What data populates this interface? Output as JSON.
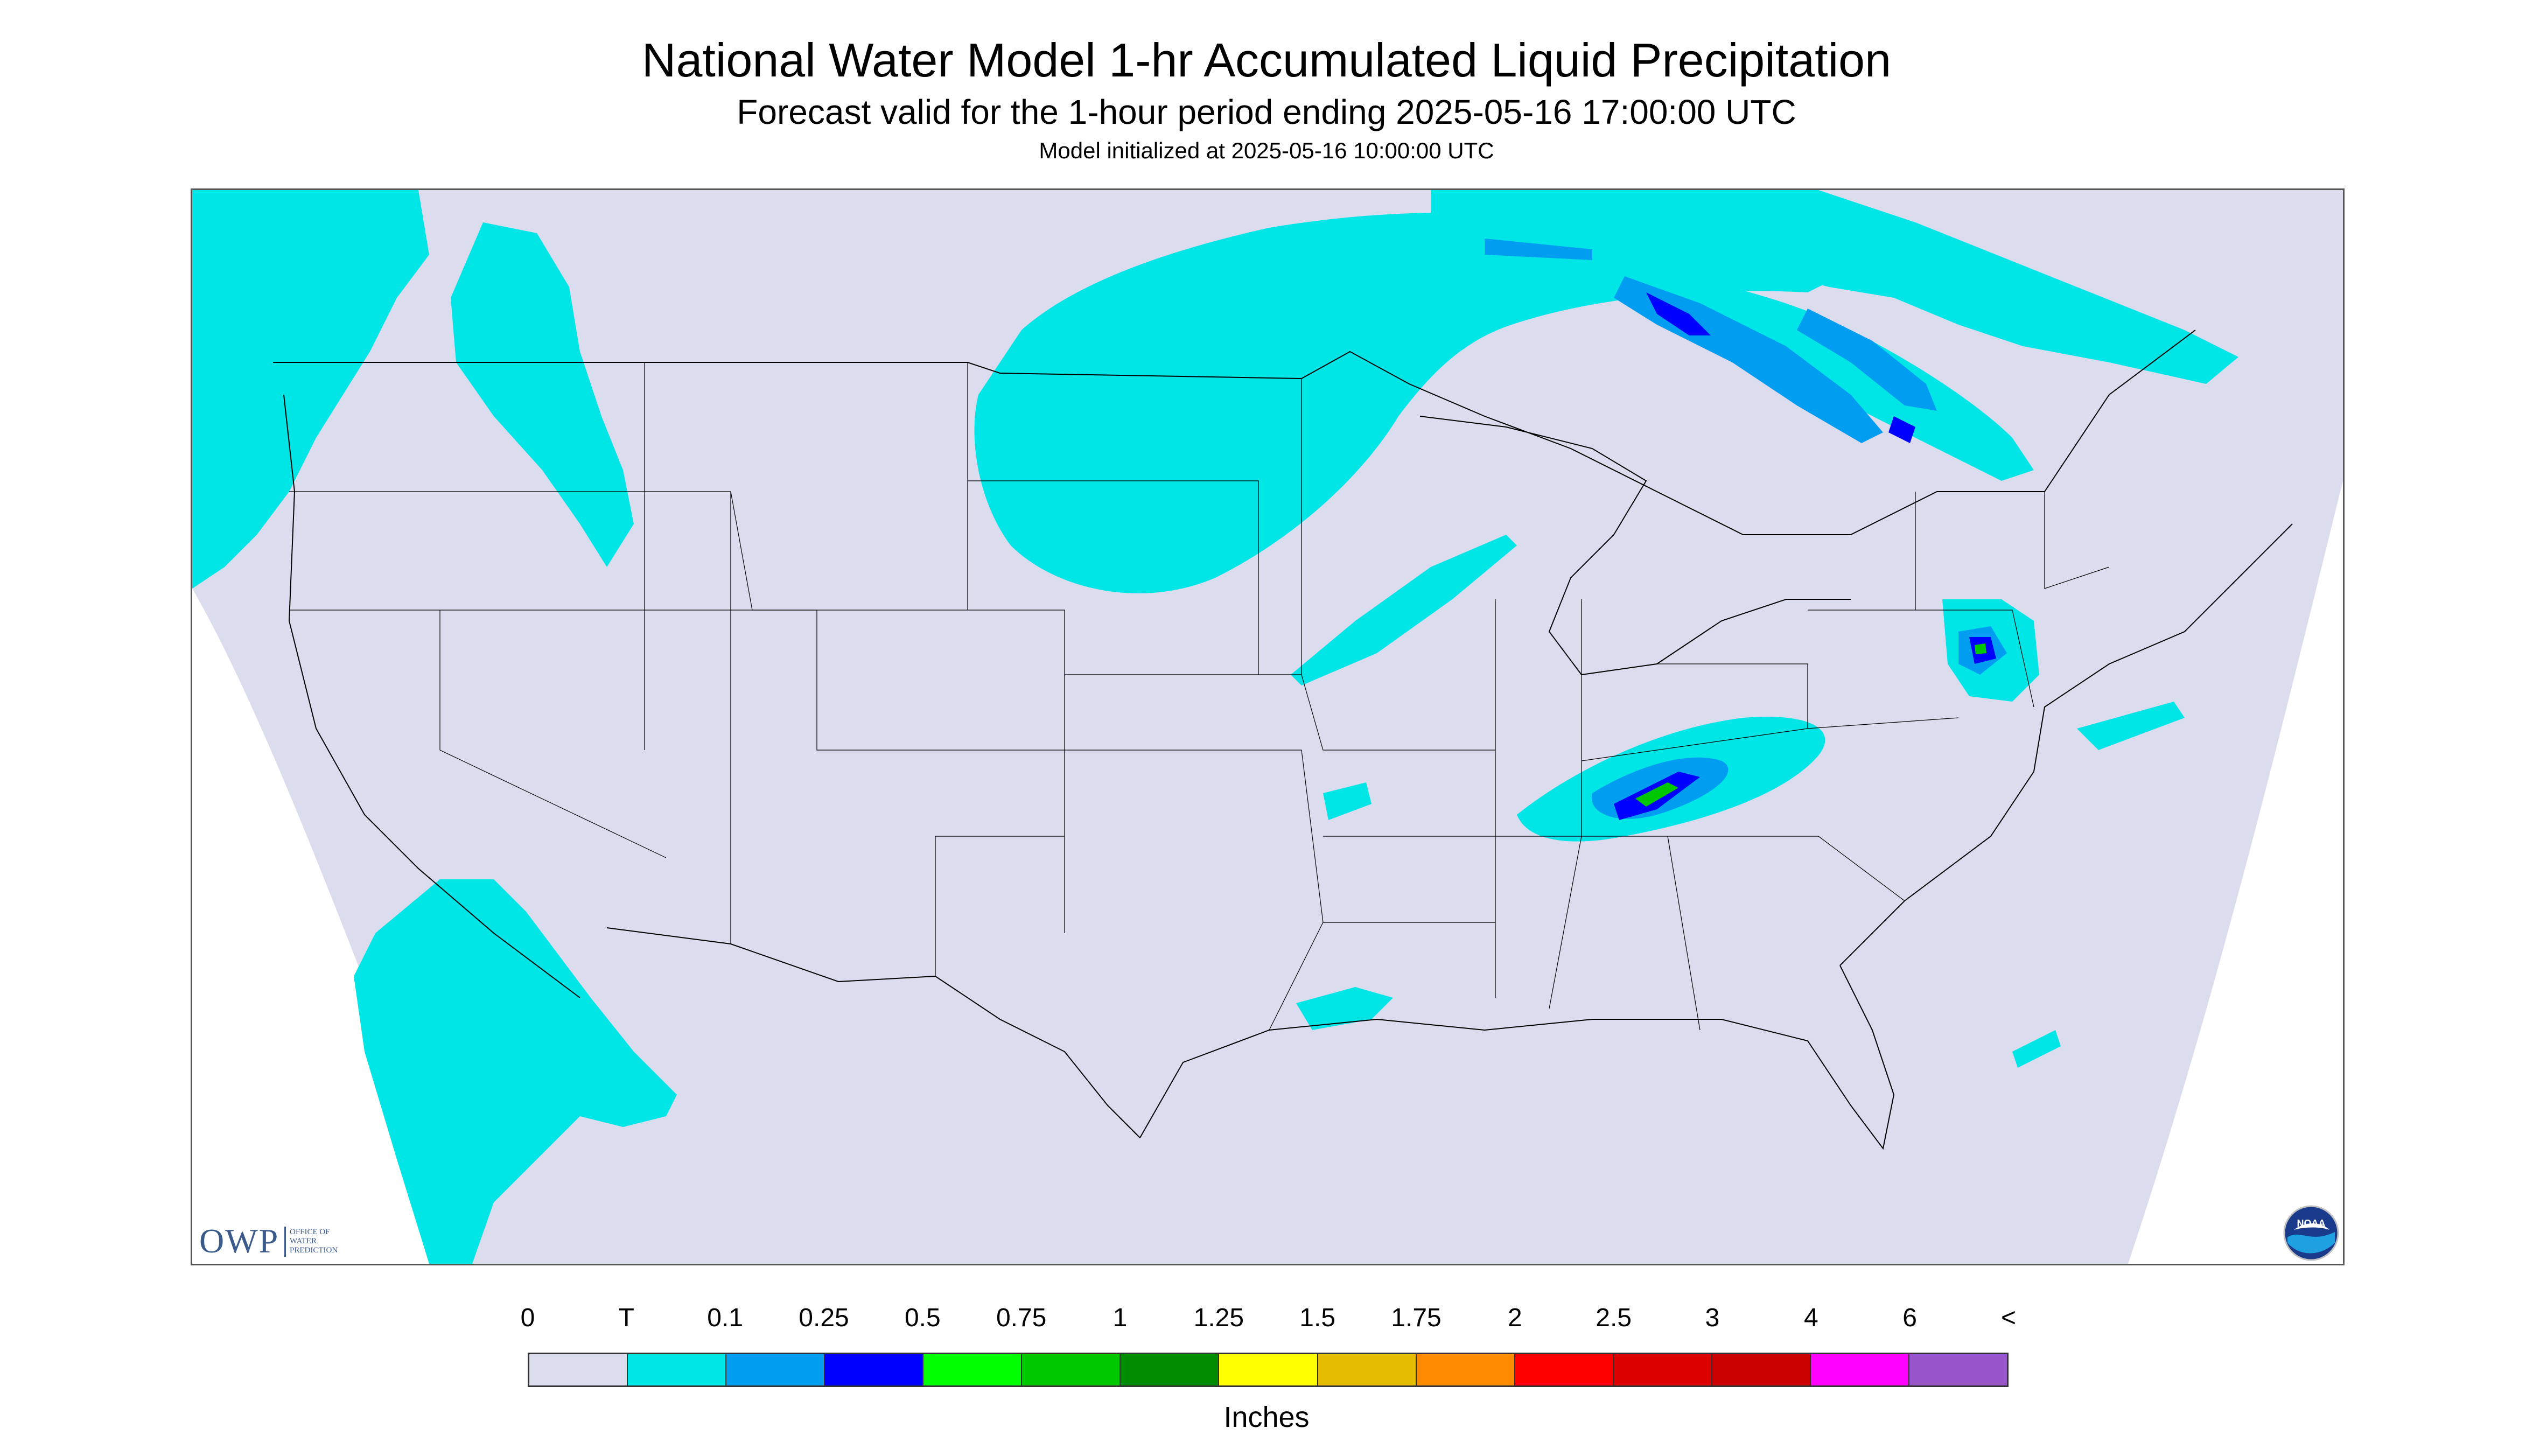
{
  "header": {
    "title": "National Water Model 1-hr Accumulated Liquid Precipitation",
    "subtitle": "Forecast valid for the 1-hour period ending 2025-05-16 17:00:00 UTC",
    "init": "Model initialized at 2025-05-16 10:00:00 UTC"
  },
  "map": {
    "background_color": "#dcdcef",
    "outside_color": "#ffffff",
    "trace_color": "#00e5e5",
    "light_color": "#009df0",
    "blue_color": "#0000ff",
    "green_color": "#00c800",
    "boundary_color": "#000000"
  },
  "logos": {
    "owp_letters": "OWP",
    "owp_sub_lines": [
      "OFFICE OF",
      "WATER",
      "PREDICTION"
    ],
    "noaa_text": "NOAA"
  },
  "legend": {
    "labels": [
      "0",
      "T",
      "0.1",
      "0.25",
      "0.5",
      "0.75",
      "1",
      "1.25",
      "1.5",
      "1.75",
      "2",
      "2.5",
      "3",
      "4",
      "6",
      "<"
    ],
    "colors": [
      "#dcdcef",
      "#00e5e5",
      "#009df0",
      "#0000ff",
      "#00ff00",
      "#00c800",
      "#008c00",
      "#ffff00",
      "#e6bc00",
      "#ff8c00",
      "#ff0000",
      "#dc0000",
      "#c80000",
      "#ff00ff",
      "#9955cc"
    ],
    "units": "Inches"
  }
}
